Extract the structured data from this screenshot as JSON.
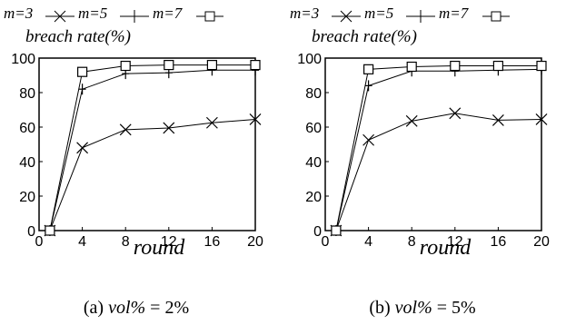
{
  "legend": {
    "series_labels": [
      "m=3",
      "m=5",
      "m=7"
    ]
  },
  "caption_parts": {
    "a_prefix": "(a) ",
    "a_var": "vol%",
    "a_rest": " = 2%",
    "b_prefix": "(b) ",
    "b_var": "vol%",
    "b_rest": " = 5%"
  },
  "chart_data": [
    {
      "type": "line",
      "title": "",
      "xlabel": "round",
      "ylabel": "breach rate(%)",
      "xlim": [
        0,
        20
      ],
      "ylim": [
        0,
        100
      ],
      "xticks": [
        0,
        4,
        8,
        12,
        16,
        20
      ],
      "yticks": [
        0,
        20,
        40,
        60,
        80,
        100
      ],
      "x": [
        1,
        4,
        8,
        12,
        16,
        20
      ],
      "legend_position": "top",
      "grid": false,
      "series": [
        {
          "name": "m=3",
          "marker": "x",
          "values": [
            0,
            48,
            58.5,
            59.5,
            62.5,
            64.5
          ]
        },
        {
          "name": "m=5",
          "marker": "plus",
          "values": [
            0,
            82,
            91,
            91.5,
            93,
            93
          ]
        },
        {
          "name": "m=7",
          "marker": "square",
          "values": [
            0,
            92,
            95.5,
            96,
            96,
            96
          ]
        }
      ]
    },
    {
      "type": "line",
      "title": "",
      "xlabel": "round",
      "ylabel": "breach rate(%)",
      "xlim": [
        0,
        20
      ],
      "ylim": [
        0,
        100
      ],
      "xticks": [
        0,
        4,
        8,
        12,
        16,
        20
      ],
      "yticks": [
        0,
        20,
        40,
        60,
        80,
        100
      ],
      "x": [
        1,
        4,
        8,
        12,
        16,
        20
      ],
      "legend_position": "top",
      "grid": false,
      "series": [
        {
          "name": "m=3",
          "marker": "x",
          "values": [
            0,
            52.5,
            63.5,
            68,
            64,
            64.5
          ]
        },
        {
          "name": "m=5",
          "marker": "plus",
          "values": [
            0,
            84,
            92.5,
            92.5,
            93,
            93.5
          ]
        },
        {
          "name": "m=7",
          "marker": "square",
          "values": [
            0,
            93.5,
            95,
            95.5,
            95.5,
            95.5
          ]
        }
      ]
    }
  ]
}
